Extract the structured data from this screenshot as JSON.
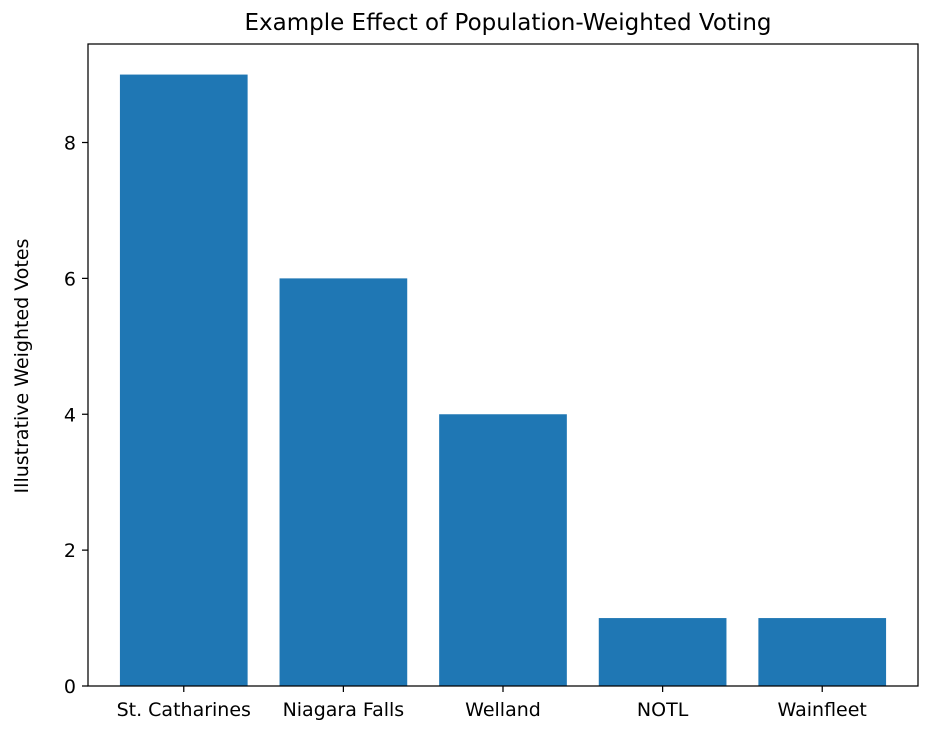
{
  "chart_data": {
    "type": "bar",
    "title": "Example Effect of Population-Weighted Voting",
    "xlabel": "",
    "ylabel": "Illustrative Weighted Votes",
    "categories": [
      "St. Catharines",
      "Niagara Falls",
      "Welland",
      "NOTL",
      "Wainfleet"
    ],
    "values": [
      9,
      6,
      4,
      1,
      1
    ],
    "ylim": [
      0,
      9.45
    ],
    "yticks": [
      0,
      2,
      4,
      6,
      8
    ],
    "grid": false,
    "legend": "none",
    "bar_color": "#1f77b4"
  }
}
